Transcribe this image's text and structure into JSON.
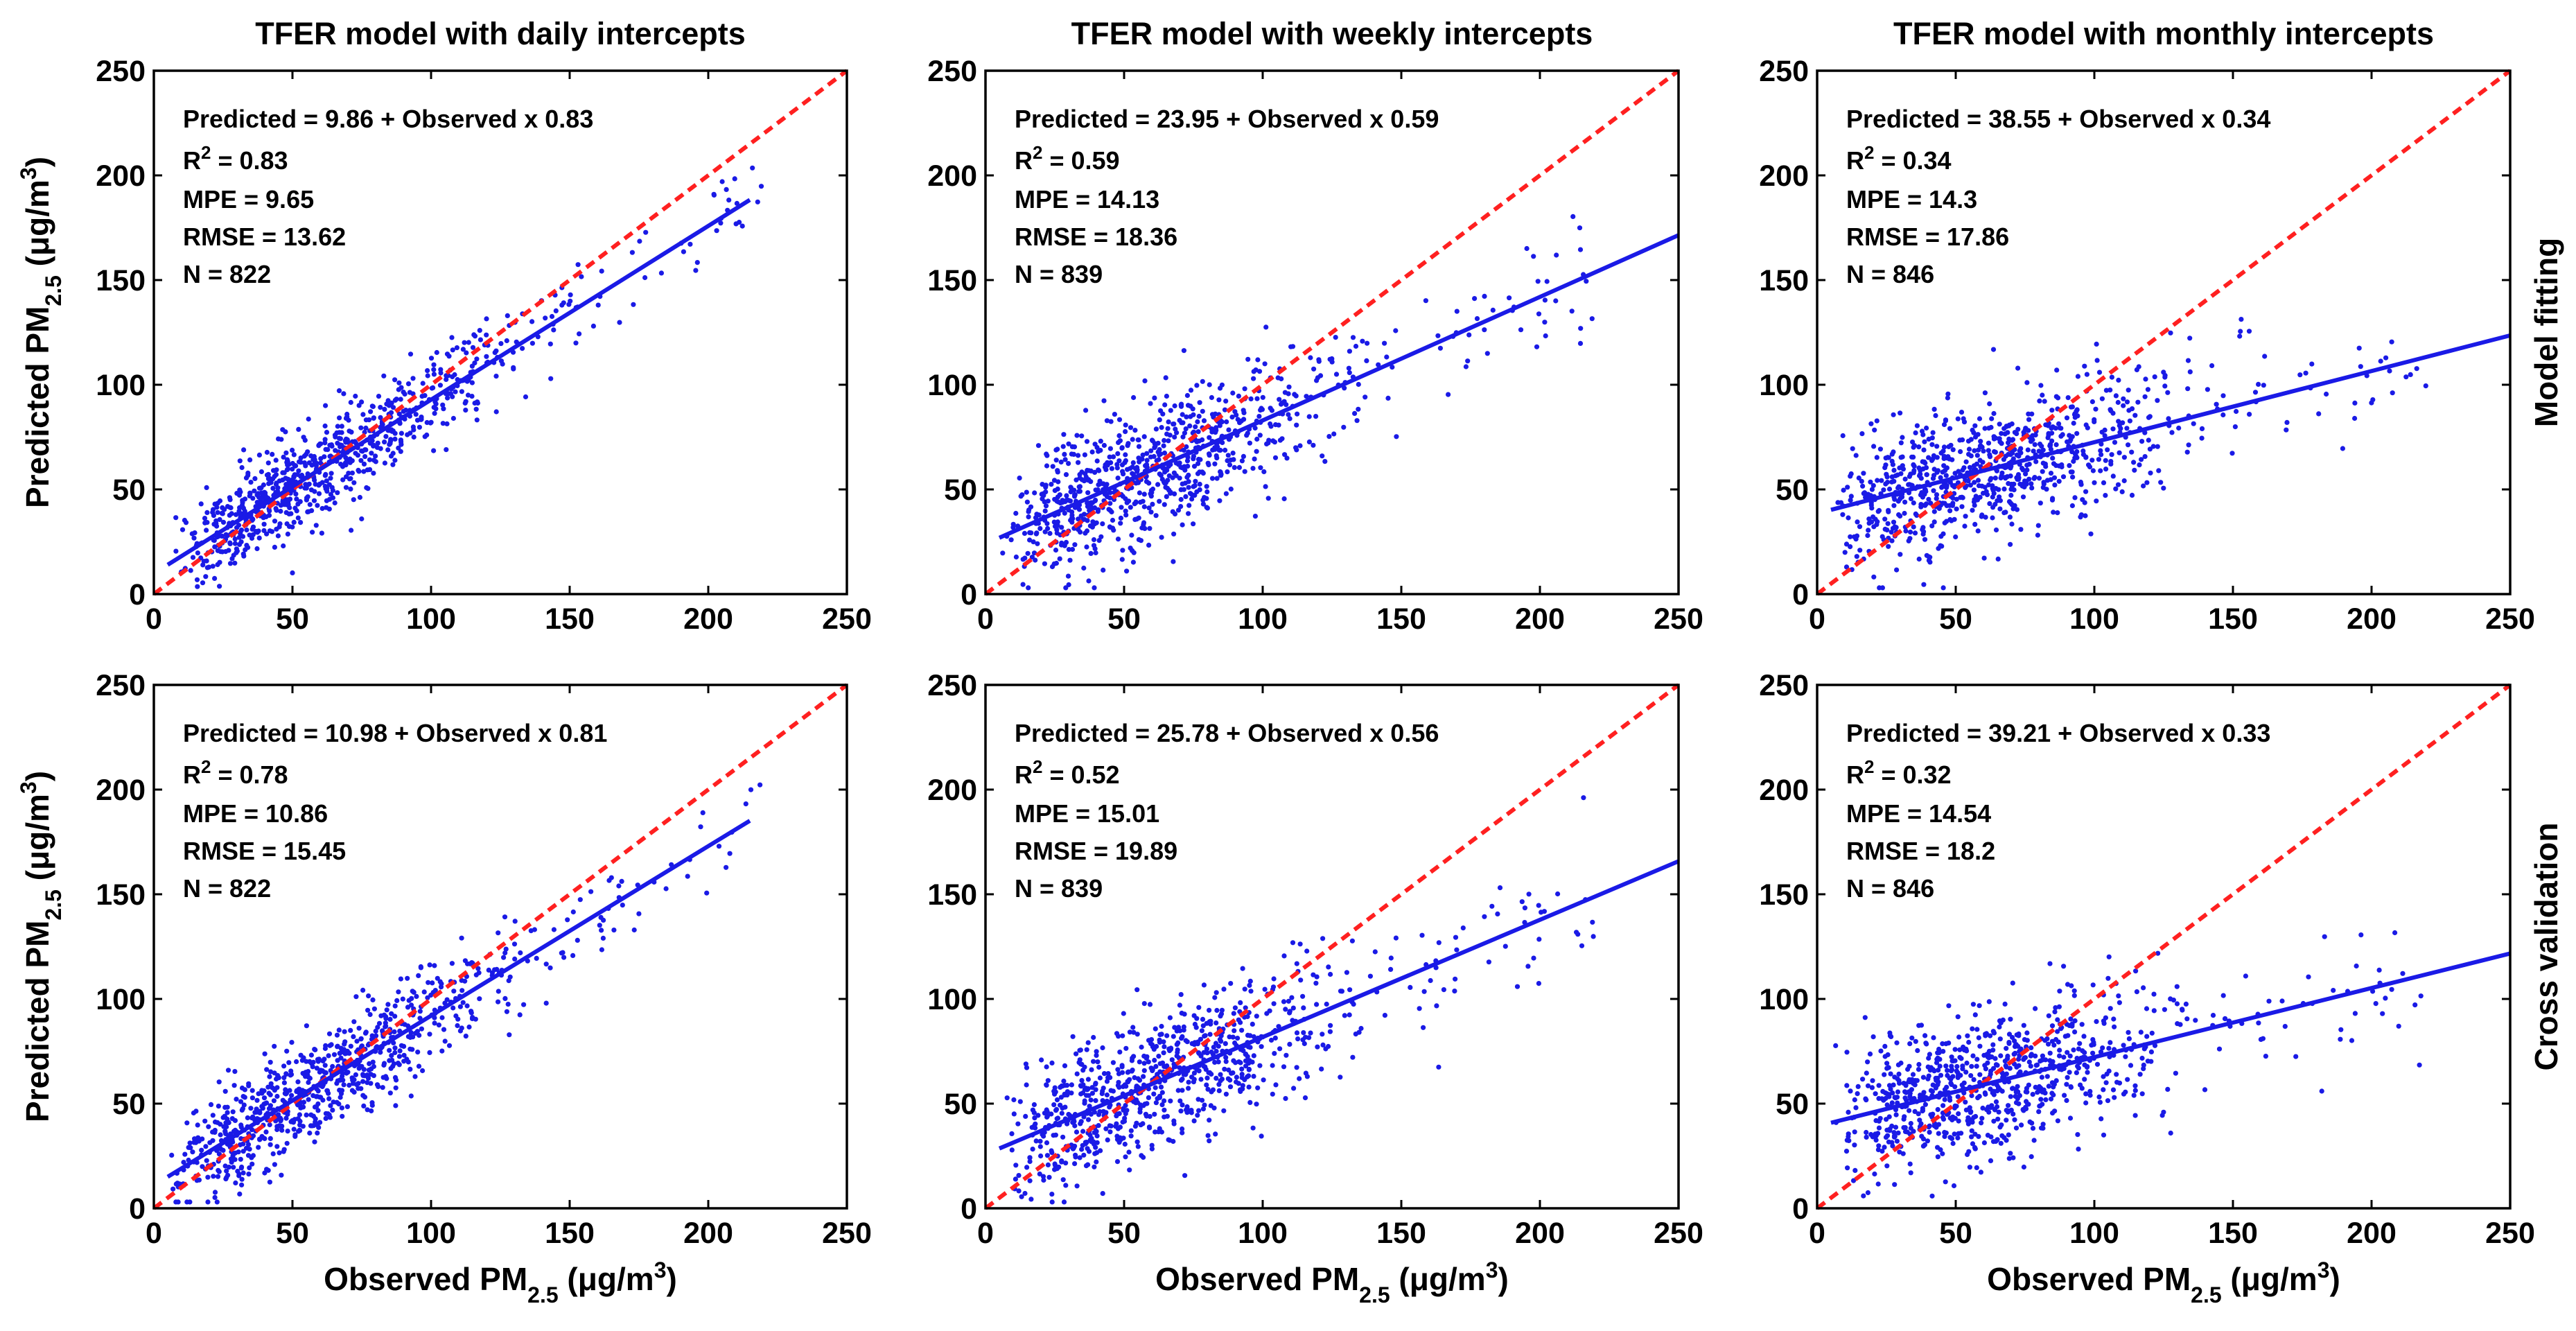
{
  "figure": {
    "row_labels": [
      "Model fitting",
      "Cross validation"
    ],
    "x_axis_label": {
      "prefix": "Observed PM",
      "sub": "2.5",
      "unit": " (μg/m",
      "sup": "3",
      "close": ")"
    },
    "y_axis_label": {
      "prefix": "Predicted PM",
      "sub": "2.5",
      "unit": " (μg/m",
      "sup": "3",
      "close": ")"
    },
    "colors": {
      "points": "#1a1ae6",
      "fit_line": "#1a1ae6",
      "one_to_one": "#ff2020",
      "axes": "#000000"
    }
  },
  "chart_data": [
    {
      "type": "scatter",
      "title": "TFER model with daily intercepts",
      "row": "Model fitting",
      "xlim": [
        0,
        250
      ],
      "ylim": [
        0,
        250
      ],
      "xticks": [
        0,
        50,
        100,
        150,
        200,
        250
      ],
      "yticks": [
        0,
        50,
        100,
        150,
        200,
        250
      ],
      "intercept": 9.86,
      "slope": 0.83,
      "fit_x_range": [
        5,
        215
      ],
      "scatter_sd": 11,
      "n_points": 822,
      "annotation": {
        "equation": "Predicted = 9.86 + Observed x 0.83",
        "r2_prefix": "R",
        "r2_sup": "2",
        "r2_value": " = 0.83",
        "mpe": "MPE = 9.65",
        "rmse": "RMSE = 13.62",
        "n": "N = 822"
      }
    },
    {
      "type": "scatter",
      "title": "TFER model with weekly intercepts",
      "row": "Model fitting",
      "xlim": [
        0,
        250
      ],
      "ylim": [
        0,
        250
      ],
      "xticks": [
        0,
        50,
        100,
        150,
        200,
        250
      ],
      "yticks": [
        0,
        50,
        100,
        150,
        200,
        250
      ],
      "intercept": 23.95,
      "slope": 0.59,
      "fit_x_range": [
        5,
        250
      ],
      "scatter_sd": 16,
      "n_points": 839,
      "annotation": {
        "equation": "Predicted = 23.95 + Observed x 0.59",
        "r2_prefix": "R",
        "r2_sup": "2",
        "r2_value": " = 0.59",
        "mpe": "MPE = 14.13",
        "rmse": "RMSE = 18.36",
        "n": "N = 839"
      }
    },
    {
      "type": "scatter",
      "title": "TFER model with monthly intercepts",
      "row": "Model fitting",
      "xlim": [
        0,
        250
      ],
      "ylim": [
        0,
        250
      ],
      "xticks": [
        0,
        50,
        100,
        150,
        200,
        250
      ],
      "yticks": [
        0,
        50,
        100,
        150,
        200,
        250
      ],
      "intercept": 38.55,
      "slope": 0.34,
      "fit_x_range": [
        5,
        250
      ],
      "scatter_sd": 16,
      "n_points": 846,
      "annotation": {
        "equation": "Predicted = 38.55 + Observed x 0.34",
        "r2_prefix": "R",
        "r2_sup": "2",
        "r2_value": " = 0.34",
        "mpe": "MPE = 14.3",
        "rmse": "RMSE = 17.86",
        "n": "N = 846"
      }
    },
    {
      "type": "scatter",
      "title": "",
      "row": "Cross validation",
      "xlim": [
        0,
        250
      ],
      "ylim": [
        0,
        250
      ],
      "xticks": [
        0,
        50,
        100,
        150,
        200,
        250
      ],
      "yticks": [
        0,
        50,
        100,
        150,
        200,
        250
      ],
      "intercept": 10.98,
      "slope": 0.81,
      "fit_x_range": [
        5,
        215
      ],
      "scatter_sd": 12,
      "n_points": 822,
      "annotation": {
        "equation": "Predicted = 10.98 + Observed x 0.81",
        "r2_prefix": "R",
        "r2_sup": "2",
        "r2_value": " = 0.78",
        "mpe": "MPE = 10.86",
        "rmse": "RMSE = 15.45",
        "n": "N = 822"
      }
    },
    {
      "type": "scatter",
      "title": "",
      "row": "Cross validation",
      "xlim": [
        0,
        250
      ],
      "ylim": [
        0,
        250
      ],
      "xticks": [
        0,
        50,
        100,
        150,
        200,
        250
      ],
      "yticks": [
        0,
        50,
        100,
        150,
        200,
        250
      ],
      "intercept": 25.78,
      "slope": 0.56,
      "fit_x_range": [
        5,
        250
      ],
      "scatter_sd": 17,
      "n_points": 839,
      "annotation": {
        "equation": "Predicted = 25.78 + Observed x 0.56",
        "r2_prefix": "R",
        "r2_sup": "2",
        "r2_value": " = 0.52",
        "mpe": "MPE = 15.01",
        "rmse": "RMSE = 19.89",
        "n": "N = 839"
      }
    },
    {
      "type": "scatter",
      "title": "",
      "row": "Cross validation",
      "xlim": [
        0,
        250
      ],
      "ylim": [
        0,
        250
      ],
      "xticks": [
        0,
        50,
        100,
        150,
        200,
        250
      ],
      "yticks": [
        0,
        50,
        100,
        150,
        200,
        250
      ],
      "intercept": 39.21,
      "slope": 0.33,
      "fit_x_range": [
        5,
        250
      ],
      "scatter_sd": 17,
      "n_points": 846,
      "annotation": {
        "equation": "Predicted = 39.21 + Observed x 0.33",
        "r2_prefix": "R",
        "r2_sup": "2",
        "r2_value": " = 0.32",
        "mpe": "MPE = 14.54",
        "rmse": "RMSE = 18.2",
        "n": "N = 846"
      }
    }
  ]
}
